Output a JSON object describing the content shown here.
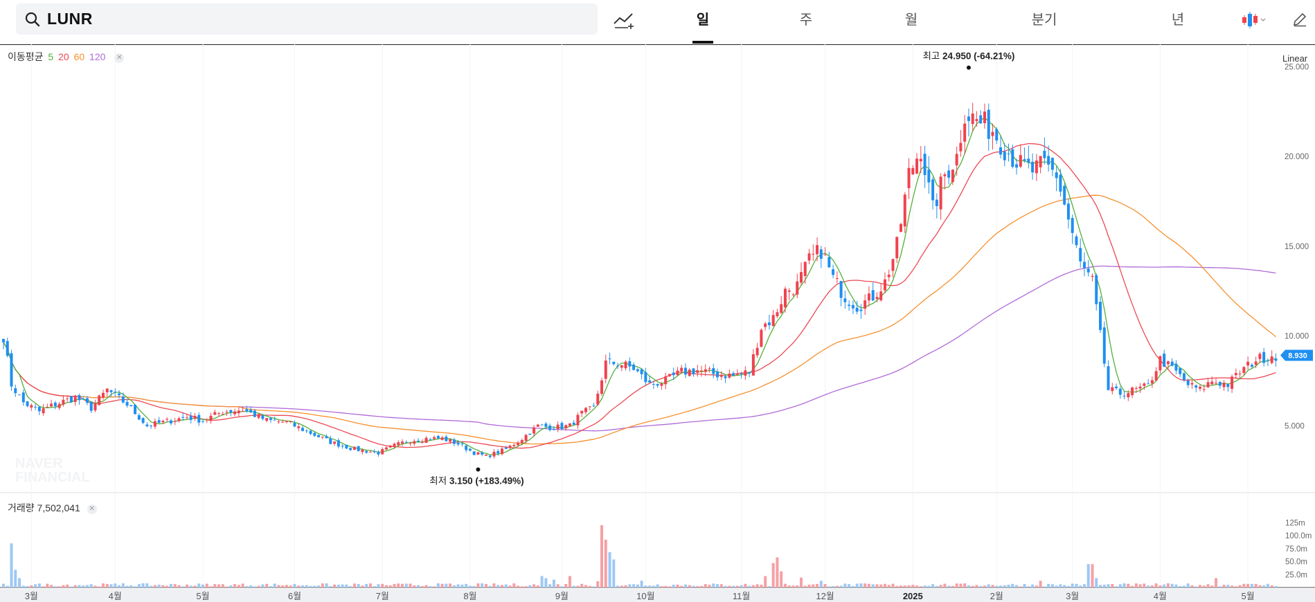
{
  "search": {
    "ticker": "LUNR"
  },
  "tabs": [
    {
      "label": "일",
      "active": true
    },
    {
      "label": "주",
      "active": false
    },
    {
      "label": "월",
      "active": false
    },
    {
      "label": "분기",
      "active": false
    },
    {
      "label": "년",
      "active": false
    }
  ],
  "icons": {
    "search": "search-icon",
    "compare": "compare-line-icon",
    "chart_type": "candlestick-icon",
    "edit": "pencil-icon"
  },
  "ma_legend": {
    "label": "이동평균",
    "periods": [
      "5",
      "20",
      "60",
      "120"
    ]
  },
  "volume_legend": {
    "label": "거래량",
    "value": "7,502,041"
  },
  "scale_label": "Linear",
  "watermark": [
    "NAVER",
    "FINANCIAL"
  ],
  "colors": {
    "up": "#f0424f",
    "down": "#1f8ff0",
    "ma5": "#52b038",
    "ma20": "#ec4852",
    "ma60": "#f6902e",
    "ma120": "#b06ad6",
    "current": "#1f8ff0"
  },
  "chart_data": {
    "type": "candlestick",
    "price_axis": {
      "ticks": [
        "25.000",
        "20.000",
        "15.000",
        "10.000",
        "5.000"
      ],
      "tick_values": [
        25,
        20,
        15,
        10,
        5
      ],
      "range": [
        1.55,
        26.25
      ]
    },
    "volume_axis": {
      "ticks": [
        "125m",
        "100.0m",
        "75.0m",
        "50.0m",
        "25.0m"
      ],
      "tick_values": [
        125,
        100,
        75,
        50,
        25
      ],
      "unit": "m"
    },
    "x_ticks": [
      "3월",
      "4월",
      "5월",
      "6월",
      "7월",
      "8월",
      "9월",
      "10월",
      "11월",
      "12월",
      "2025",
      "2월",
      "3월",
      "4월",
      "5월"
    ],
    "x_tick_index": [
      7,
      28,
      50,
      73,
      95,
      117,
      140,
      161,
      185,
      206,
      228,
      249,
      268,
      290,
      312
    ],
    "annotations": {
      "high": {
        "label": "최고",
        "value": "24.950",
        "change": "(-64.21%)",
        "index": 242,
        "price": 24.95
      },
      "low": {
        "label": "최저",
        "value": "3.150",
        "change": "(+183.49%)",
        "index": 119,
        "price": 3.15
      }
    },
    "current_price": {
      "label": "8.930",
      "value": 8.93
    },
    "price_anchors": [
      [
        0,
        10.0
      ],
      [
        2,
        7.3
      ],
      [
        5,
        6.3
      ],
      [
        9,
        5.8
      ],
      [
        13,
        6.2
      ],
      [
        18,
        6.6
      ],
      [
        22,
        6.0
      ],
      [
        26,
        7.0
      ],
      [
        31,
        6.2
      ],
      [
        36,
        5.0
      ],
      [
        40,
        5.2
      ],
      [
        46,
        5.5
      ],
      [
        50,
        5.3
      ],
      [
        55,
        5.8
      ],
      [
        60,
        5.9
      ],
      [
        66,
        5.3
      ],
      [
        71,
        5.2
      ],
      [
        76,
        4.7
      ],
      [
        82,
        4.1
      ],
      [
        88,
        3.7
      ],
      [
        94,
        3.5
      ],
      [
        98,
        3.9
      ],
      [
        102,
        4.2
      ],
      [
        106,
        4.3
      ],
      [
        110,
        4.3
      ],
      [
        114,
        4.0
      ],
      [
        118,
        3.5
      ],
      [
        121,
        3.3
      ],
      [
        126,
        3.7
      ],
      [
        130,
        4.3
      ],
      [
        134,
        5.0
      ],
      [
        138,
        4.9
      ],
      [
        142,
        5.0
      ],
      [
        145,
        5.7
      ],
      [
        148,
        6.0
      ],
      [
        151,
        8.5
      ],
      [
        154,
        8.5
      ],
      [
        158,
        8.2
      ],
      [
        162,
        7.3
      ],
      [
        166,
        7.5
      ],
      [
        170,
        8.0
      ],
      [
        174,
        8.1
      ],
      [
        178,
        7.9
      ],
      [
        183,
        7.8
      ],
      [
        187,
        8.0
      ],
      [
        190,
        10.5
      ],
      [
        193,
        11.0
      ],
      [
        196,
        12.5
      ],
      [
        199,
        12.8
      ],
      [
        202,
        14.2
      ],
      [
        205,
        14.8
      ],
      [
        208,
        13.2
      ],
      [
        211,
        12.2
      ],
      [
        214,
        11.7
      ],
      [
        217,
        12.0
      ],
      [
        221,
        13.0
      ],
      [
        224,
        15.0
      ],
      [
        227,
        19.0
      ],
      [
        230,
        20.5
      ],
      [
        233,
        17.0
      ],
      [
        236,
        19.0
      ],
      [
        239,
        20.0
      ],
      [
        241,
        22.5
      ],
      [
        244,
        22.0
      ],
      [
        248,
        21.5
      ],
      [
        251,
        20.5
      ],
      [
        255,
        19.5
      ],
      [
        258,
        19.2
      ],
      [
        261,
        19.5
      ],
      [
        264,
        19.0
      ],
      [
        267,
        16.5
      ],
      [
        270,
        14.0
      ],
      [
        273,
        13.0
      ],
      [
        275,
        10.0
      ],
      [
        277,
        7.0
      ],
      [
        280,
        6.8
      ],
      [
        284,
        7.0
      ],
      [
        287,
        7.2
      ],
      [
        290,
        8.7
      ],
      [
        294,
        8.0
      ],
      [
        297,
        7.3
      ],
      [
        300,
        7.0
      ],
      [
        303,
        7.5
      ],
      [
        307,
        7.3
      ],
      [
        310,
        8.0
      ],
      [
        314,
        8.7
      ],
      [
        318,
        8.93
      ]
    ],
    "series": [
      {
        "name": "5",
        "type": "moving_average"
      },
      {
        "name": "20",
        "type": "moving_average"
      },
      {
        "name": "60",
        "type": "moving_average"
      },
      {
        "name": "120",
        "type": "moving_average"
      }
    ],
    "volume_spikes": [
      [
        2,
        85
      ],
      [
        3,
        34
      ],
      [
        4,
        18
      ],
      [
        30,
        8
      ],
      [
        135,
        22
      ],
      [
        136,
        18
      ],
      [
        138,
        15
      ],
      [
        142,
        22
      ],
      [
        149,
        12
      ],
      [
        150,
        120
      ],
      [
        151,
        92
      ],
      [
        152,
        68
      ],
      [
        153,
        54
      ],
      [
        160,
        13
      ],
      [
        191,
        22
      ],
      [
        193,
        47
      ],
      [
        194,
        58
      ],
      [
        195,
        31
      ],
      [
        200,
        19
      ],
      [
        205,
        13
      ],
      [
        260,
        13
      ],
      [
        272,
        45
      ],
      [
        273,
        45
      ],
      [
        274,
        18
      ],
      [
        304,
        18
      ],
      [
        312,
        7
      ]
    ]
  }
}
